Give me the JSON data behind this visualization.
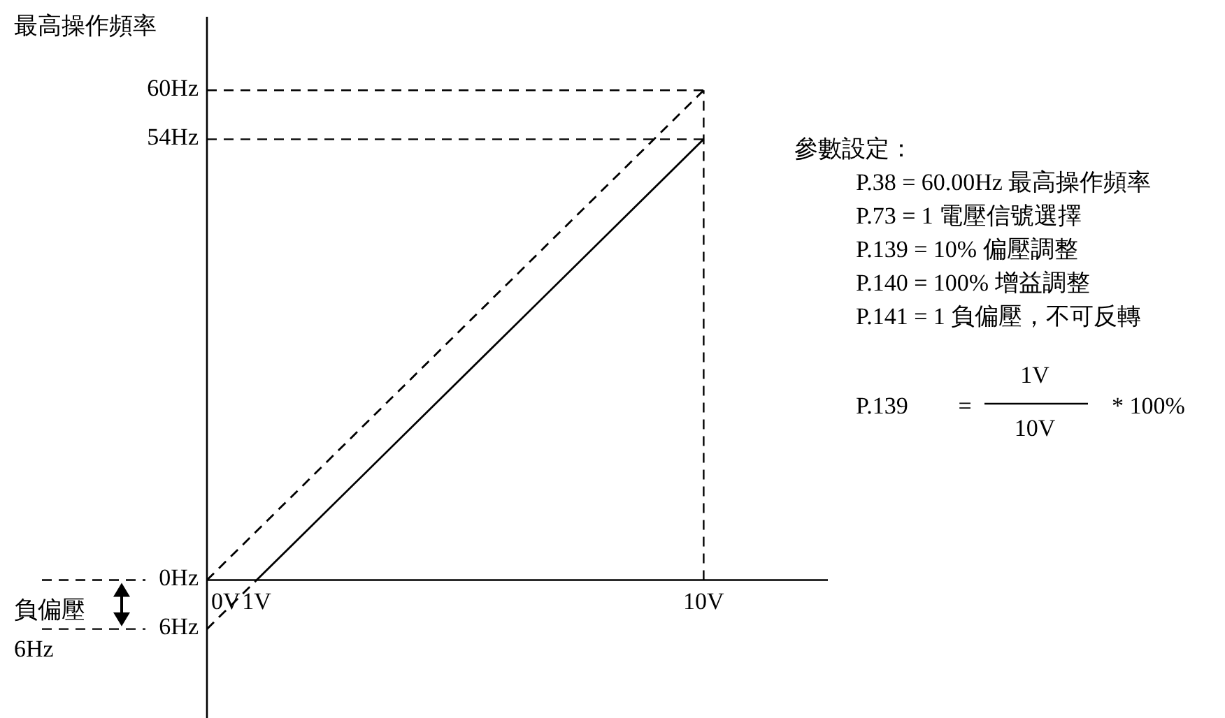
{
  "chart_data": {
    "type": "line",
    "ylabel": "最高操作頻率",
    "xlim": [
      0,
      12.5
    ],
    "ylim": [
      -21,
      69
    ],
    "xticks": [
      {
        "value": 0,
        "label": "0V"
      },
      {
        "value": 1,
        "label": "1V"
      },
      {
        "value": 10,
        "label": "10V"
      }
    ],
    "yticks": [
      {
        "value": 60,
        "label": "60Hz"
      },
      {
        "value": 54,
        "label": "54Hz"
      },
      {
        "value": 0,
        "label": "0Hz"
      },
      {
        "value": -6,
        "label": "6Hz"
      }
    ],
    "series": [
      {
        "x": [
          1,
          10
        ],
        "values": [
          0,
          54
        ],
        "color": "#000000",
        "line_style": "solid"
      },
      {
        "x": [
          0,
          10
        ],
        "values": [
          0,
          60
        ],
        "color": "#000000",
        "line_style": "dashed"
      },
      {
        "x": [
          0,
          1
        ],
        "values": [
          -6,
          0
        ],
        "color": "#000000",
        "line_style": "dashed"
      }
    ],
    "ref_lines": [
      {
        "axis": "y",
        "value": 60,
        "line_style": "dashed"
      },
      {
        "axis": "y",
        "value": 54,
        "line_style": "dashed"
      },
      {
        "axis": "x",
        "value": 10,
        "line_style": "dashed"
      }
    ],
    "annotations": [
      "參數設定：",
      "P.38 = 60.00Hz 最高操作頻率",
      "P.73 = 1  電壓信號選擇",
      "P.139 = 10% 偏壓調整",
      "P.140 = 100% 增益調整",
      "P.141 = 1 負偏壓，不可反轉",
      "P.139",
      "=",
      "1V",
      "10V",
      "* 100%",
      "負偏壓",
      "6Hz"
    ],
    "grid": false
  }
}
